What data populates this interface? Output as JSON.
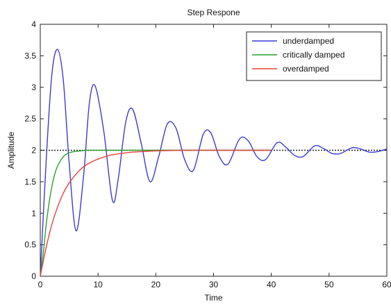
{
  "chart_data": {
    "type": "line",
    "title": "Step Respone",
    "xlabel": "Time",
    "ylabel": "Amplitude",
    "xlim": [
      0,
      60
    ],
    "ylim": [
      0,
      4
    ],
    "xticks": [
      0,
      10,
      20,
      30,
      40,
      50,
      60
    ],
    "xtick_labels": [
      "0",
      "10",
      "20",
      "30",
      "40",
      "50",
      "60"
    ],
    "yticks": [
      0,
      0.5,
      1,
      1.5,
      2,
      2.5,
      3,
      3.5,
      4
    ],
    "ytick_labels": [
      "0",
      "0.5",
      "1",
      "1.5",
      "2",
      "2.5",
      "3",
      "3.5",
      "4"
    ],
    "grid": false,
    "legend_position": "top-right",
    "series": [
      {
        "name": "underdamped",
        "color": "#3b3bd1",
        "x": [
          0,
          1,
          2,
          3,
          4,
          5,
          6.2,
          7.5,
          8.5,
          9.5,
          11,
          12.5,
          13.5,
          14.8,
          16,
          17.5,
          19,
          20.5,
          22,
          23.5,
          25,
          26.5,
          28.2,
          29.5,
          31,
          32.5,
          34.5,
          36,
          37.5,
          39,
          41,
          42.5,
          44,
          45.5,
          47.5,
          49,
          50.5,
          52,
          54,
          55.5,
          57,
          58.5,
          60
        ],
        "values": [
          0,
          1.8,
          3.2,
          3.6,
          3.1,
          1.8,
          0.72,
          1.6,
          2.75,
          3.02,
          2.3,
          1.2,
          1.55,
          2.45,
          2.65,
          2.1,
          1.5,
          1.9,
          2.42,
          2.35,
          1.85,
          1.68,
          2.25,
          2.28,
          1.9,
          1.78,
          2.18,
          2.15,
          1.9,
          1.85,
          2.12,
          2.05,
          1.92,
          1.9,
          2.07,
          2.03,
          1.95,
          1.95,
          2.04,
          2.02,
          1.97,
          1.98,
          2.02
        ]
      },
      {
        "name": "critically damped",
        "color": "#2ca02c",
        "x": [
          0,
          0.5,
          1,
          1.5,
          2,
          2.5,
          3,
          4,
          5,
          6,
          7,
          8,
          10,
          15,
          20,
          25,
          30,
          35,
          40
        ],
        "values": [
          0,
          0.35,
          0.8,
          1.15,
          1.42,
          1.62,
          1.75,
          1.9,
          1.96,
          1.98,
          1.99,
          2.0,
          2.0,
          2.0,
          2.0,
          2.0,
          2.0,
          2.0,
          2.0
        ]
      },
      {
        "name": "overdamped",
        "color": "#e8423c",
        "x": [
          0,
          1,
          2,
          3,
          4,
          5,
          6,
          7,
          8,
          9,
          10,
          12,
          14,
          16,
          18,
          20,
          25,
          30,
          35,
          40
        ],
        "values": [
          0,
          0.45,
          0.82,
          1.1,
          1.32,
          1.48,
          1.6,
          1.7,
          1.77,
          1.82,
          1.86,
          1.92,
          1.95,
          1.97,
          1.98,
          1.99,
          2.0,
          2.0,
          2.0,
          2.0
        ]
      },
      {
        "name": "",
        "color": "#222222",
        "style": "dotted",
        "x": [
          0,
          60
        ],
        "values": [
          2,
          2
        ]
      }
    ]
  }
}
